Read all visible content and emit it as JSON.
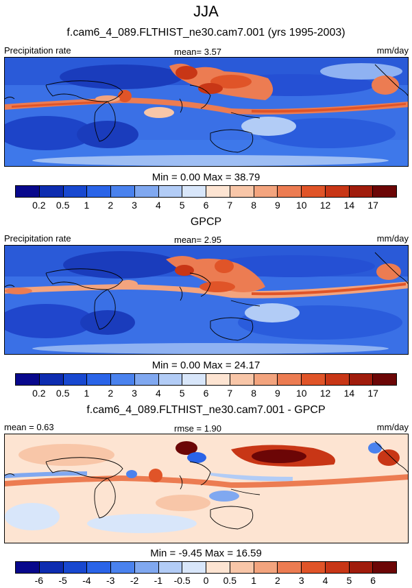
{
  "season_title": "JJA",
  "panels": [
    {
      "title": "f.cam6_4_089.FLTHIST_ne30.cam7.001 (yrs 1995-2003)",
      "left_label": "Precipitation rate",
      "center_label": "mean=   3.57",
      "right_label": "mm/day",
      "minmax": "Min =   0.00 Max =  38.79",
      "colorbar_ticks": [
        "0.2",
        "0.5",
        "1",
        "2",
        "3",
        "4",
        "5",
        "6",
        "7",
        "8",
        "9",
        "10",
        "12",
        "14",
        "17"
      ]
    },
    {
      "title": "GPCP",
      "left_label": "Precipitation rate",
      "center_label": "mean=   2.95",
      "right_label": "mm/day",
      "minmax": "Min =   0.00 Max =  24.17",
      "colorbar_ticks": [
        "0.2",
        "0.5",
        "1",
        "2",
        "3",
        "4",
        "5",
        "6",
        "7",
        "8",
        "9",
        "10",
        "12",
        "14",
        "17"
      ]
    },
    {
      "title": "f.cam6_4_089.FLTHIST_ne30.cam7.001 - GPCP",
      "left_label": "mean =   0.63",
      "center_label": "rmse =   1.90",
      "right_label": "mm/day",
      "minmax": "Min =  -9.45 Max =  16.59",
      "colorbar_ticks": [
        "-6",
        "-5",
        "-4",
        "-3",
        "-2",
        "-1",
        "-0.5",
        "0",
        "0.5",
        "1",
        "2",
        "3",
        "4",
        "5",
        "6"
      ]
    }
  ],
  "colors": {
    "precip_scale": [
      "#08088c",
      "#0d2cb0",
      "#1848d0",
      "#2a64e8",
      "#4a82ee",
      "#80a8f0",
      "#b2ccf6",
      "#d8e6fa",
      "#fde4d2",
      "#f8c6a8",
      "#f3a47e",
      "#ec7c52",
      "#e05428",
      "#c83616",
      "#a01c0c",
      "#6c0606"
    ],
    "diff_scale": [
      "#08088c",
      "#0d2cb0",
      "#1848d0",
      "#2a64e8",
      "#4a82ee",
      "#80a8f0",
      "#b2ccf6",
      "#d8e6fa",
      "#fde4d2",
      "#f8c6a8",
      "#f3a47e",
      "#ec7c52",
      "#e05428",
      "#c83616",
      "#a01c0c",
      "#6c0606"
    ]
  }
}
